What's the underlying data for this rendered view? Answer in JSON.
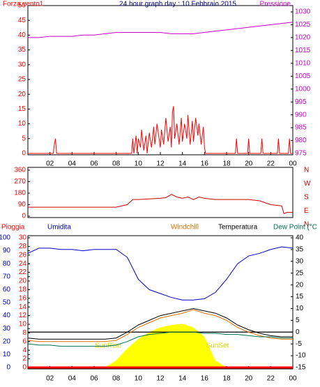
{
  "chart_data": [
    {
      "type": "line",
      "title": "24 hour graph day : 10 Febbraio 2015",
      "y_label": "Forza vento1",
      "y2_label": "Pressione",
      "xlim": [
        0,
        24
      ],
      "xticks": [
        {
          "value": 2,
          "label": "02"
        },
        {
          "value": 4,
          "label": "04"
        },
        {
          "value": 6,
          "label": "06"
        },
        {
          "value": 8,
          "label": "08"
        },
        10,
        12,
        14,
        16,
        18,
        20,
        22,
        {
          "value": 24,
          "label": "00"
        }
      ],
      "ylim": [
        0,
        50
      ],
      "yticks": [
        0,
        5,
        10,
        15,
        20,
        25,
        30,
        35,
        40,
        45,
        50
      ],
      "y2lim": [
        975,
        1030
      ],
      "y2ticks": [
        975,
        980,
        985,
        990,
        995,
        1000,
        1005,
        1010,
        1015,
        1020,
        1025,
        1030
      ],
      "series": [
        {
          "color": "#ff0000",
          "x": [
            0,
            2.3,
            2.4,
            2.5,
            2.6,
            2.7,
            9.4,
            9.5,
            9.6,
            9.8,
            9.9,
            10,
            10.2,
            10.3,
            10.5,
            10.7,
            10.8,
            11,
            11.2,
            11.4,
            11.5,
            11.7,
            12,
            12.1,
            12.3,
            12.5,
            12.7,
            12.9,
            13,
            13.1,
            13.2,
            13.3,
            13.5,
            13.7,
            13.9,
            14,
            14.2,
            14.4,
            14.5,
            14.7,
            14.9,
            15,
            15.2,
            15.4,
            15.5,
            15.7,
            15.9,
            16,
            16.1,
            18.8,
            18.9,
            19,
            19.9,
            20,
            20.1,
            21.1,
            21.2,
            21.3,
            22.6,
            22.7,
            22.8,
            23.6,
            23.7,
            23.8,
            24
          ],
          "values": [
            0,
            0,
            3,
            5,
            0,
            0,
            0,
            5,
            0,
            6,
            0,
            5,
            2,
            8,
            1,
            6,
            0,
            7,
            2,
            9,
            3,
            10,
            2,
            8,
            3,
            12,
            4,
            9,
            2,
            14,
            16,
            5,
            10,
            3,
            12,
            4,
            10,
            5,
            13,
            3,
            11,
            4,
            12,
            6,
            10,
            3,
            9,
            2,
            0,
            0,
            5,
            0,
            0,
            5,
            0,
            0,
            5,
            0,
            0,
            5,
            0,
            0,
            5,
            0,
            0
          ]
        },
        {
          "color": "#cc00cc",
          "axis": "y2",
          "x": [
            0,
            1,
            2,
            3,
            4,
            5,
            6,
            7,
            8,
            9,
            10,
            11,
            12,
            13,
            14,
            15,
            16,
            17,
            18,
            19,
            20,
            21,
            22,
            23,
            24
          ],
          "values": [
            1020,
            1020,
            1020.5,
            1020.5,
            1020.5,
            1021,
            1021,
            1021.5,
            1022,
            1022,
            1022,
            1022,
            1022,
            1021.5,
            1021.5,
            1021.5,
            1022,
            1022.5,
            1023,
            1023.5,
            1024,
            1024.5,
            1025,
            1025.5,
            1026
          ]
        }
      ]
    },
    {
      "type": "line",
      "ylim": [
        0,
        360
      ],
      "yticks": [
        0,
        90,
        180,
        270,
        360
      ],
      "xlim": [
        0,
        24
      ],
      "direction_labels": [
        "N",
        "W",
        "S",
        "E",
        "N"
      ],
      "series": [
        {
          "color": "#cc0000",
          "x": [
            0,
            8,
            9,
            9.5,
            10,
            11,
            12,
            12.5,
            13,
            13.5,
            14,
            14.5,
            15,
            15.5,
            16,
            17,
            18,
            19,
            20,
            21,
            22,
            22.5,
            23,
            23.2,
            23.5,
            24
          ],
          "values": [
            70,
            70,
            90,
            130,
            130,
            135,
            140,
            145,
            170,
            150,
            140,
            150,
            130,
            150,
            140,
            130,
            130,
            130,
            130,
            120,
            90,
            85,
            80,
            20,
            30,
            30
          ]
        }
      ]
    },
    {
      "type": "line",
      "xlim": [
        0,
        24
      ],
      "xticks": [
        {
          "value": 2,
          "label": "02"
        },
        {
          "value": 4,
          "label": "04"
        },
        {
          "value": 6,
          "label": "06"
        },
        {
          "value": 8,
          "label": "08"
        },
        10,
        12,
        14,
        16,
        18,
        20,
        22,
        {
          "value": 24,
          "label": "00"
        }
      ],
      "ylim": [
        0,
        100
      ],
      "yticks": [
        0,
        10,
        20,
        30,
        40,
        50,
        60,
        70,
        80,
        90,
        100
      ],
      "y3lim": [
        0,
        30
      ],
      "y3ticks": [
        0,
        2,
        4,
        6,
        8,
        10,
        12,
        14,
        16,
        18,
        20,
        22,
        24,
        26,
        28,
        30
      ],
      "y2lim": [
        -15,
        40
      ],
      "y2ticks": [
        -15,
        -10,
        -5,
        0,
        5,
        10,
        15,
        20,
        25,
        30,
        35,
        40
      ],
      "hline": 0,
      "annotations": [
        "SunRise",
        "SunSet"
      ],
      "area": {
        "color": "#ffff00",
        "axis": "y2",
        "x": [
          0,
          1,
          2,
          3,
          4,
          5,
          6,
          7,
          8,
          9,
          10,
          11,
          12,
          13,
          14,
          15,
          16,
          17,
          18,
          19,
          20,
          21,
          22,
          23,
          24
        ],
        "values": [
          -15,
          -15,
          -15,
          -15,
          -15,
          -15,
          -15,
          -15,
          -12,
          -7,
          -3,
          0,
          2,
          3,
          3.5,
          2,
          -2,
          -12,
          -15,
          -15,
          -15,
          -15,
          -15,
          -15,
          -15
        ]
      },
      "series": [
        {
          "name": "Pioggia",
          "color": "#ff0000",
          "axis": "y3",
          "x": [
            0,
            1,
            2,
            3,
            4,
            5,
            6,
            7,
            8,
            9,
            10,
            11,
            12,
            13,
            14,
            15,
            16,
            17,
            18,
            19,
            20,
            21,
            22,
            23,
            24
          ],
          "values": [
            0,
            0,
            0,
            0,
            0,
            0,
            0,
            0,
            0,
            0,
            0,
            0,
            0,
            0,
            0,
            0,
            0,
            0,
            0,
            0,
            0,
            0,
            0,
            0,
            0
          ]
        },
        {
          "name": "Umidita",
          "color": "#0000cc",
          "x": [
            0,
            1,
            2,
            3,
            4,
            5,
            6,
            7,
            8,
            9,
            10,
            11,
            12,
            13,
            14,
            15,
            16,
            17,
            18,
            19,
            20,
            21,
            22,
            23,
            24
          ],
          "values": [
            88,
            92,
            92,
            91,
            91,
            90,
            91,
            91,
            91,
            85,
            68,
            60,
            57,
            54,
            52,
            52,
            53,
            58,
            68,
            80,
            86,
            88,
            91,
            93,
            92
          ]
        },
        {
          "name": "Windchill",
          "color": "#e07000",
          "axis": "y2",
          "x": [
            0,
            1,
            2,
            3,
            4,
            5,
            6,
            7,
            8,
            9,
            10,
            11,
            12,
            13,
            14,
            15,
            16,
            17,
            18,
            19,
            20,
            21,
            22,
            23,
            24
          ],
          "values": [
            -3.5,
            -4,
            -4,
            -4,
            -4,
            -4,
            -4,
            -4,
            -3.5,
            -1,
            2,
            4,
            6,
            7,
            8,
            9.5,
            8,
            7,
            5,
            2,
            0,
            -1.5,
            -2.5,
            -3,
            -3
          ]
        },
        {
          "name": "Temperatura",
          "color": "#000000",
          "axis": "y2",
          "x": [
            0,
            1,
            2,
            3,
            4,
            5,
            6,
            7,
            8,
            9,
            10,
            11,
            12,
            13,
            14,
            15,
            16,
            17,
            18,
            19,
            20,
            21,
            22,
            23,
            24
          ],
          "values": [
            -2.5,
            -3,
            -3,
            -3,
            -3,
            -3,
            -3,
            -3,
            -2.5,
            0,
            3,
            5,
            7,
            8,
            9,
            10,
            9,
            8,
            6,
            3,
            1,
            -0.5,
            -1.5,
            -2,
            -2
          ]
        },
        {
          "name": "Dew Point (°C",
          "color": "#007050",
          "axis": "y2",
          "x": [
            0,
            1,
            2,
            3,
            4,
            5,
            6,
            7,
            8,
            9,
            10,
            11,
            12,
            13,
            14,
            15,
            16,
            17,
            18,
            19,
            20,
            21,
            22,
            23,
            24
          ],
          "values": [
            -5,
            -5.5,
            -5.5,
            -6,
            -6,
            -6,
            -6,
            -6,
            -5.5,
            -4,
            -2,
            -1,
            -0.5,
            0,
            0,
            0,
            -0.5,
            -0.5,
            -1,
            -1,
            -1.5,
            -2,
            -2,
            -2.5,
            -2.5
          ]
        }
      ]
    }
  ]
}
